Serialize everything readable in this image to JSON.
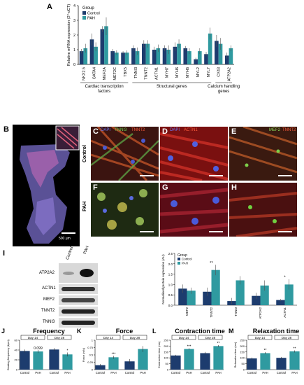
{
  "colors": {
    "control": "#1d3c6e",
    "pah": "#2f9aa0",
    "bg_micro": "#1a0a0a"
  },
  "chart_data": [
    {
      "panel": "A",
      "type": "bar",
      "ylabel": "Relative mRNA expression (2^-dCT)",
      "ylim": [
        0,
        4
      ],
      "yticks": [
        0,
        1,
        2,
        3,
        4
      ],
      "legend": {
        "title": "Group",
        "entries": [
          "Control",
          "PAH"
        ],
        "placement": "top-left"
      },
      "categories": [
        "NKX2.5",
        "GATA4",
        "MEF2A",
        "MEF2C",
        "TBX5",
        "TNNI3",
        "TNNT2",
        "ACTN1",
        "MYH7",
        "MYH6",
        "MYH6",
        "MYL2",
        "MYL7",
        "CX43",
        "ATP2A2"
      ],
      "series": [
        {
          "name": "Control",
          "values": [
            0.9,
            1.7,
            2.4,
            0.9,
            0.8,
            1.1,
            1.4,
            1.0,
            1.1,
            1.2,
            1.1,
            0.35,
            0.7,
            1.6,
            0.6
          ]
        },
        {
          "name": "PAH",
          "values": [
            1.1,
            1.2,
            2.6,
            0.8,
            0.8,
            0.9,
            1.4,
            1.1,
            1.0,
            1.4,
            0.9,
            0.9,
            2.1,
            1.4,
            1.1
          ]
        }
      ],
      "errors": [
        [
          0.15,
          0.4,
          0.2,
          0.15,
          0.1,
          0.2,
          0.25,
          0.2,
          0.2,
          0.3,
          0.15,
          0.1,
          0.15,
          0.4,
          0.2
        ],
        [
          0.3,
          0.3,
          0.6,
          0.15,
          0.15,
          0.25,
          0.25,
          0.25,
          0.3,
          0.3,
          0.2,
          0.2,
          0.4,
          0.4,
          0.2
        ]
      ],
      "groups": [
        {
          "label": "Cardiac transcription factors",
          "from": 0,
          "to": 4
        },
        {
          "label": "Structural genes",
          "from": 5,
          "to": 12
        },
        {
          "label": "Calcium handling genes",
          "from": 13,
          "to": 14
        }
      ]
    },
    {
      "panel": "I",
      "type": "bar",
      "ylabel": "Normalised protein expression (AU)",
      "ylim": [
        0,
        2.5
      ],
      "yticks": [
        0.0,
        0.5,
        1.0,
        1.5,
        2.0,
        2.5
      ],
      "legend": {
        "title": "Group",
        "entries": [
          "Control",
          "PAH"
        ],
        "placement": "top-left"
      },
      "categories": [
        "MEF2",
        "TNNT2",
        "TNNI3",
        "ATP2A2",
        "ACTN1"
      ],
      "series": [
        {
          "name": "Control",
          "values": [
            0.8,
            0.65,
            0.2,
            0.45,
            0.25
          ]
        },
        {
          "name": "PAH",
          "values": [
            0.7,
            1.7,
            1.2,
            0.95,
            1.0
          ]
        }
      ],
      "errors": [
        [
          0.2,
          0.2,
          0.15,
          0.15,
          0.05
        ],
        [
          0.15,
          0.25,
          0.2,
          0.25,
          0.25
        ]
      ],
      "annotations": [
        "",
        "**",
        "",
        "",
        "*"
      ]
    },
    {
      "panel": "J",
      "type": "bar",
      "title": "Frequency",
      "ylabel": "Beating frequency (bpm)",
      "ylim": [
        0,
        60
      ],
      "yticks": [
        0,
        20,
        40,
        60
      ],
      "timepoints": [
        "Day 14",
        "Day 28"
      ],
      "categories": [
        "Control",
        "PAH",
        "Control",
        "PAH"
      ],
      "values": [
        38,
        37,
        41,
        31
      ],
      "errors": [
        3,
        3,
        3,
        4
      ],
      "annotations": [
        "",
        "0.099",
        "",
        "*"
      ]
    },
    {
      "panel": "K",
      "type": "bar",
      "title": "Force",
      "ylabel": "Force (mN)",
      "ylim": [
        0,
        1.0
      ],
      "yticks": [
        0,
        0.25,
        0.5,
        0.75,
        1.0
      ],
      "timepoints": [
        "Day 14",
        "Day 28"
      ],
      "categories": [
        "Control",
        "PAH",
        "Control",
        "PAH"
      ],
      "values": [
        0.15,
        0.42,
        0.28,
        0.7
      ],
      "errors": [
        0.04,
        0.05,
        0.08,
        0.1
      ],
      "annotations": [
        "",
        "***",
        "",
        ""
      ]
    },
    {
      "panel": "L",
      "type": "bar",
      "title": "Contraction time",
      "ylabel": "Contraction time (ms)",
      "ylim": [
        0,
        250
      ],
      "yticks": [
        0,
        50,
        100,
        150,
        200,
        250
      ],
      "timepoints": [
        "Day 14",
        "Day 28"
      ],
      "categories": [
        "Control",
        "PAH",
        "Control",
        "PAH"
      ],
      "values": [
        120,
        175,
        140,
        200
      ],
      "errors": [
        6,
        7,
        10,
        8
      ],
      "annotations": [
        "",
        "***",
        "",
        "**"
      ]
    },
    {
      "panel": "M",
      "type": "bar",
      "title": "Relaxation time",
      "ylabel": "Relaxation time (ms)",
      "ylim": [
        0,
        250
      ],
      "yticks": [
        0,
        50,
        100,
        150,
        200,
        250
      ],
      "timepoints": [
        "Day 14",
        "Day 28"
      ],
      "categories": [
        "Control",
        "PAH",
        "Control",
        "PAH"
      ],
      "values": [
        95,
        140,
        100,
        155
      ],
      "errors": [
        8,
        9,
        8,
        9
      ],
      "annotations": [
        "",
        "**",
        "",
        "**"
      ]
    }
  ],
  "panels": {
    "A": "A",
    "B": "B",
    "C": "C",
    "D": "D",
    "E": "E",
    "F": "F",
    "G": "G",
    "H": "H",
    "I": "I",
    "J": "J",
    "K": "K",
    "L": "L",
    "M": "M"
  },
  "micrographs": {
    "C_dapi": "DAPI",
    "C_tnni3": "TNNI3",
    "C_tnnt2": "TNNT2",
    "D_dapi": "DAPI",
    "D_actn1": "ACTN1",
    "E_mef2": "MEF2",
    "E_tnnt2": "TNNT2",
    "row_control": "Control",
    "row_pah": "PAH",
    "B_scale": "500 μm"
  },
  "blot": {
    "col_control": "Control",
    "col_pah": "PAH",
    "rows": [
      "ATP2A2",
      "ACTN1",
      "MEF2",
      "TNNT2",
      "TNNI3"
    ]
  }
}
